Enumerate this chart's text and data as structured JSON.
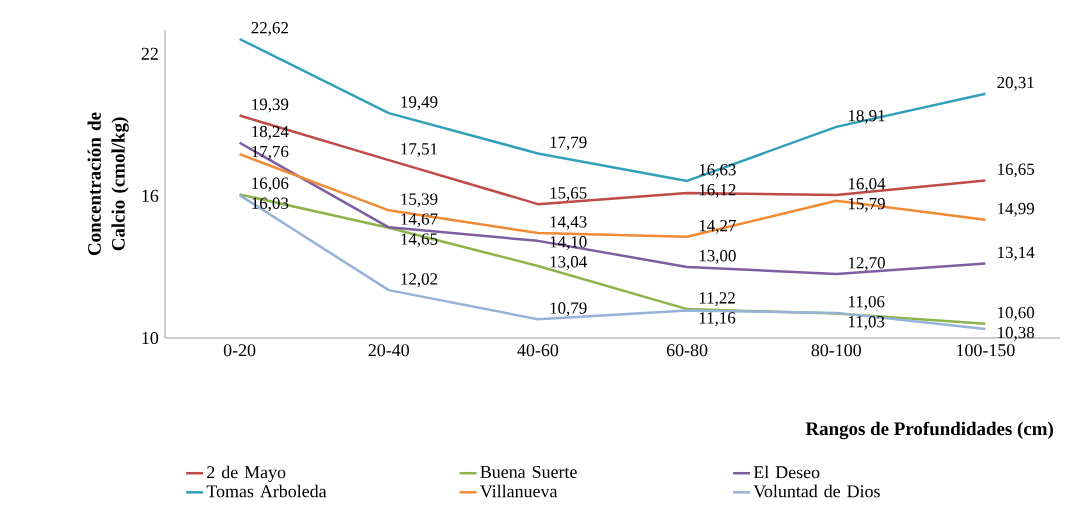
{
  "chart_data": {
    "type": "line",
    "xlabel": "Rangos de Profundidades (cm)",
    "ylabel": "Concentración de Calcio (cmol/kg)",
    "categories": [
      "0-20",
      "20-40",
      "40-60",
      "60-80",
      "80-100",
      "100-150"
    ],
    "series": [
      {
        "name": "2 de Mayo",
        "color": "#be4b48",
        "values": [
          19.39,
          17.51,
          15.65,
          16.12,
          16.04,
          16.65
        ],
        "value_labels": [
          "19,39",
          "17,51",
          "15,65",
          "16,12",
          "16,04",
          "16,65"
        ]
      },
      {
        "name": "Buena Suerte",
        "color": "#8eb34a",
        "values": [
          16.06,
          14.65,
          13.04,
          11.22,
          11.03,
          10.6
        ],
        "value_labels": [
          "16,06",
          "14,65",
          "13,04",
          "11,22",
          "11,03",
          "10,60"
        ]
      },
      {
        "name": "El Deseo",
        "color": "#7e5ea0",
        "values": [
          18.24,
          14.67,
          14.1,
          13.0,
          12.7,
          13.14
        ],
        "value_labels": [
          "18,24",
          "14,67",
          "14,10",
          "13,00",
          "12,70",
          "13,14"
        ]
      },
      {
        "name": "Tomas Arboleda",
        "color": "#31a0b8",
        "values": [
          22.62,
          19.49,
          17.79,
          16.63,
          18.91,
          20.31
        ],
        "value_labels": [
          "22,62",
          "19,49",
          "17,79",
          "16,63",
          "18,91",
          "20,31"
        ]
      },
      {
        "name": "Villanueva",
        "color": "#f08b34",
        "values": [
          17.76,
          15.39,
          14.43,
          14.27,
          15.79,
          14.99
        ],
        "value_labels": [
          "17,76",
          "15,39",
          "14,43",
          "14,27",
          "15,79",
          "14,99"
        ]
      },
      {
        "name": "Voluntad de Dios",
        "color": "#95b3d8",
        "values": [
          16.03,
          12.02,
          10.79,
          11.16,
          11.06,
          10.38
        ],
        "value_labels": [
          "16,03",
          "12,02",
          "10,79",
          "11,16",
          "11,06",
          "10,38"
        ]
      }
    ],
    "ylim": [
      10,
      23
    ],
    "yticks": [
      10,
      16,
      22
    ],
    "grid": false,
    "legend": "bottom",
    "marker": "none",
    "line_style": "solid"
  }
}
